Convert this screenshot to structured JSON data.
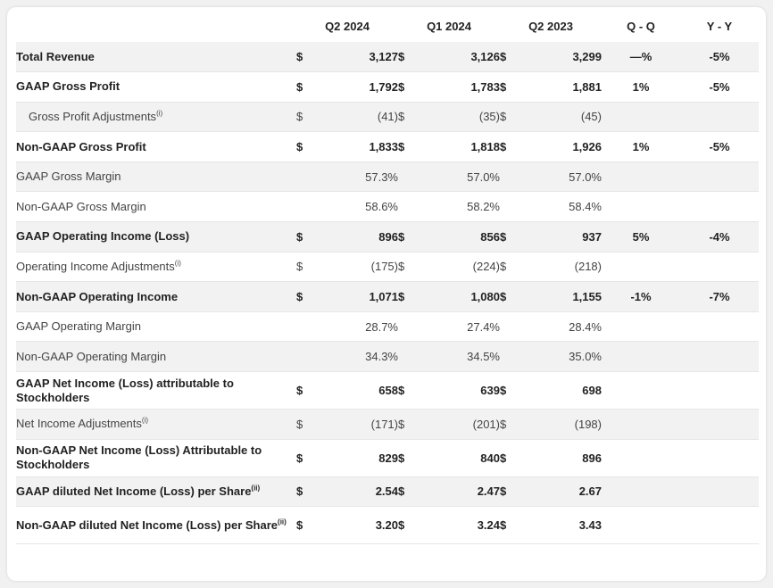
{
  "columns": [
    "",
    "Q2 2024",
    "Q1 2024",
    "Q2 2023",
    "Q - Q",
    "Y - Y"
  ],
  "rows": [
    {
      "label": "Total Revenue",
      "sup": "",
      "bold": true,
      "sub": false,
      "c1": "$",
      "v1": "3,127",
      "c2": "$",
      "v2": "3,126",
      "c3": "$",
      "v3": "3,299",
      "qq": "—%",
      "yy": "-5%"
    },
    {
      "label": "GAAP Gross Profit",
      "sup": "",
      "bold": true,
      "sub": false,
      "c1": "$",
      "v1": "1,792",
      "c2": "$",
      "v2": "1,783",
      "c3": "$",
      "v3": "1,881",
      "qq": "1%",
      "yy": "-5%"
    },
    {
      "label": "Gross Profit Adjustments",
      "sup": "(i)",
      "bold": false,
      "sub": true,
      "c1": "$",
      "v1": "(41)",
      "c2": "$",
      "v2": "(35)",
      "c3": "$",
      "v3": "(45)",
      "qq": "",
      "yy": ""
    },
    {
      "label": "Non-GAAP Gross Profit",
      "sup": "",
      "bold": true,
      "sub": false,
      "c1": "$",
      "v1": "1,833",
      "c2": "$",
      "v2": "1,818",
      "c3": "$",
      "v3": "1,926",
      "qq": "1%",
      "yy": "-5%"
    },
    {
      "label": "GAAP Gross Margin",
      "sup": "",
      "bold": false,
      "sub": false,
      "c1": "",
      "v1": "57.3%",
      "c2": "",
      "v2": "57.0%",
      "c3": "",
      "v3": "57.0%",
      "qq": "",
      "yy": ""
    },
    {
      "label": "Non-GAAP Gross Margin",
      "sup": "",
      "bold": false,
      "sub": false,
      "c1": "",
      "v1": "58.6%",
      "c2": "",
      "v2": "58.2%",
      "c3": "",
      "v3": "58.4%",
      "qq": "",
      "yy": ""
    },
    {
      "label": "GAAP Operating Income (Loss)",
      "sup": "",
      "bold": true,
      "sub": false,
      "c1": "$",
      "v1": "896",
      "c2": "$",
      "v2": "856",
      "c3": "$",
      "v3": "937",
      "qq": "5%",
      "yy": "-4%"
    },
    {
      "label": "Operating Income Adjustments",
      "sup": "(i)",
      "bold": false,
      "sub": false,
      "c1": "$",
      "v1": "(175)",
      "c2": "$",
      "v2": "(224)",
      "c3": "$",
      "v3": "(218)",
      "qq": "",
      "yy": ""
    },
    {
      "label": "Non-GAAP Operating Income",
      "sup": "",
      "bold": true,
      "sub": false,
      "c1": "$",
      "v1": "1,071",
      "c2": "$",
      "v2": "1,080",
      "c3": "$",
      "v3": "1,155",
      "qq": "-1%",
      "yy": "-7%"
    },
    {
      "label": "GAAP Operating Margin",
      "sup": "",
      "bold": false,
      "sub": false,
      "c1": "",
      "v1": "28.7%",
      "c2": "",
      "v2": "27.4%",
      "c3": "",
      "v3": "28.4%",
      "qq": "",
      "yy": ""
    },
    {
      "label": "Non-GAAP Operating Margin",
      "sup": "",
      "bold": false,
      "sub": false,
      "c1": "",
      "v1": "34.3%",
      "c2": "",
      "v2": "34.5%",
      "c3": "",
      "v3": "35.0%",
      "qq": "",
      "yy": ""
    },
    {
      "label": "GAAP Net Income (Loss) attributable to Stockholders",
      "sup": "",
      "bold": true,
      "sub": false,
      "tall": true,
      "c1": "$",
      "v1": "658",
      "c2": "$",
      "v2": "639",
      "c3": "$",
      "v3": "698",
      "qq": "",
      "yy": ""
    },
    {
      "label": "Net Income Adjustments",
      "sup": "(i)",
      "bold": false,
      "sub": false,
      "c1": "$",
      "v1": "(171)",
      "c2": "$",
      "v2": "(201)",
      "c3": "$",
      "v3": "(198)",
      "qq": "",
      "yy": ""
    },
    {
      "label": "Non-GAAP Net Income (Loss) Attributable to Stockholders",
      "sup": "",
      "bold": true,
      "sub": false,
      "tall": true,
      "c1": "$",
      "v1": "829",
      "c2": "$",
      "v2": "840",
      "c3": "$",
      "v3": "896",
      "qq": "",
      "yy": ""
    },
    {
      "label": "GAAP diluted Net Income (Loss) per Share",
      "sup": "(ii)",
      "bold": true,
      "sub": false,
      "c1": "$",
      "v1": "2.54",
      "c2": "$",
      "v2": "2.47",
      "c3": "$",
      "v3": "2.67",
      "qq": "",
      "yy": ""
    },
    {
      "label": "Non-GAAP diluted Net Income (Loss) per Share",
      "sup": "(ii)",
      "bold": true,
      "sub": false,
      "tall": true,
      "c1": "$",
      "v1": "3.20",
      "c2": "$",
      "v2": "3.24",
      "c3": "$",
      "v3": "3.43",
      "qq": "",
      "yy": ""
    }
  ]
}
